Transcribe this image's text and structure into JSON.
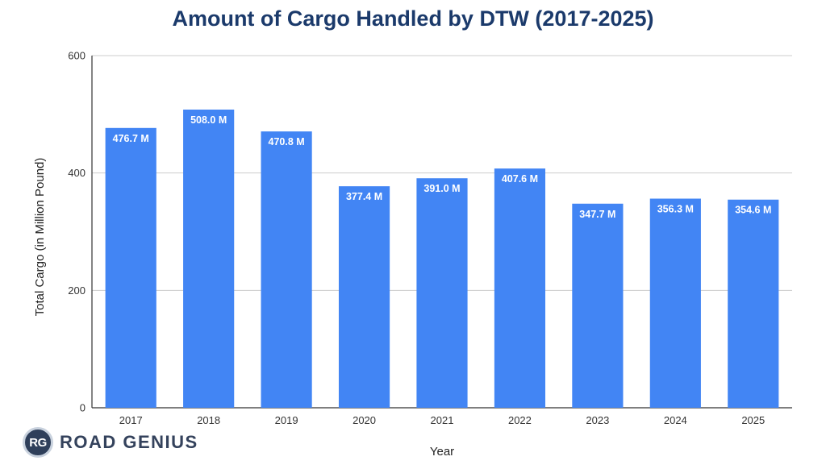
{
  "chart_data": {
    "type": "bar",
    "title": "Amount of Cargo Handled by DTW (2017-2025)",
    "xlabel": "Year",
    "ylabel": "Total Cargo (in Million Pound)",
    "ylim": [
      0,
      600
    ],
    "yticks": [
      0,
      200,
      400,
      600
    ],
    "grid": true,
    "categories": [
      "2017",
      "2018",
      "2019",
      "2020",
      "2021",
      "2022",
      "2023",
      "2024",
      "2025"
    ],
    "values": [
      476.7,
      508.0,
      470.8,
      377.4,
      391.0,
      407.6,
      347.7,
      356.3,
      354.6
    ],
    "data_labels": [
      "476.7 M",
      "508.0 M",
      "470.8 M",
      "377.4 M",
      "391.0 M",
      "407.6 M",
      "347.7 M",
      "356.3 M",
      "354.6 M"
    ],
    "bar_color": "#4285f4"
  },
  "brand": {
    "badge": "RG",
    "name": "ROAD GENIUS"
  }
}
